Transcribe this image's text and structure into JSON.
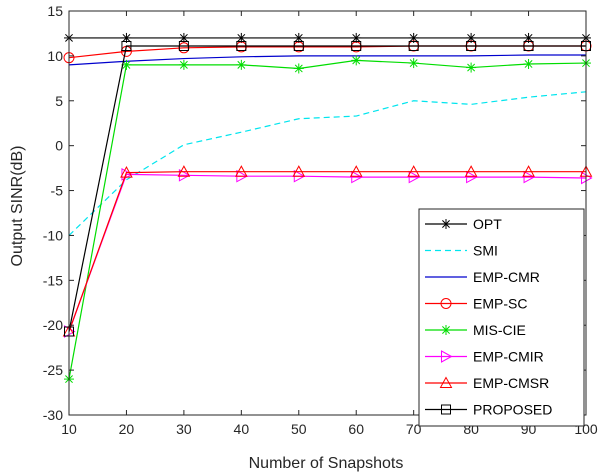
{
  "chart_data": {
    "type": "line",
    "title": "",
    "xlabel": "Number of Snapshots",
    "ylabel": "Output SINR(dB)",
    "xlim": [
      10,
      100
    ],
    "ylim": [
      -30,
      15
    ],
    "xticks": [
      10,
      20,
      30,
      40,
      50,
      60,
      70,
      80,
      90,
      100
    ],
    "yticks": [
      15,
      10,
      5,
      0,
      -5,
      -10,
      -15,
      -20,
      -25,
      -30
    ],
    "grid": false,
    "legend_position": "bottom-right",
    "x": [
      10,
      20,
      30,
      40,
      50,
      60,
      70,
      80,
      90,
      100
    ],
    "series": [
      {
        "name": "OPT",
        "color": "#000000",
        "marker": "asterisk",
        "dash": "solid",
        "values": [
          12.0,
          12.0,
          12.0,
          12.0,
          12.0,
          12.0,
          12.0,
          12.0,
          12.0,
          12.0
        ]
      },
      {
        "name": "SMI",
        "color": "#00e5ee",
        "marker": "none",
        "dash": "dashed",
        "values": [
          -10.0,
          -3.8,
          0.1,
          1.5,
          3.0,
          3.3,
          5.0,
          4.6,
          5.4,
          6.0
        ]
      },
      {
        "name": "EMP-CMR",
        "color": "#0000cd",
        "marker": "none",
        "dash": "solid",
        "values": [
          9.0,
          9.4,
          9.7,
          9.9,
          10.0,
          10.0,
          10.0,
          10.0,
          10.1,
          10.1
        ]
      },
      {
        "name": "EMP-SC",
        "color": "#ff0000",
        "marker": "circle",
        "dash": "solid",
        "values": [
          9.8,
          10.5,
          10.9,
          11.0,
          11.0,
          11.0,
          11.1,
          11.1,
          11.1,
          11.1
        ]
      },
      {
        "name": "MIS-CIE",
        "color": "#00dd00",
        "marker": "asterisk",
        "dash": "solid",
        "values": [
          -26.0,
          9.0,
          9.0,
          9.0,
          8.6,
          9.5,
          9.2,
          8.7,
          9.1,
          9.2
        ]
      },
      {
        "name": "EMP-CMIR",
        "color": "#ff00ff",
        "marker": "triangle-right",
        "dash": "solid",
        "values": [
          -20.7,
          -3.2,
          -3.3,
          -3.4,
          -3.4,
          -3.5,
          -3.5,
          -3.5,
          -3.5,
          -3.6
        ]
      },
      {
        "name": "EMP-CMSR",
        "color": "#ff0000",
        "marker": "triangle-up",
        "dash": "solid",
        "values": [
          -20.7,
          -3.0,
          -2.9,
          -2.9,
          -2.9,
          -2.9,
          -2.9,
          -2.9,
          -2.9,
          -2.9
        ]
      },
      {
        "name": "PROPOSED",
        "color": "#000000",
        "marker": "square",
        "dash": "solid",
        "values": [
          -20.7,
          11.1,
          11.1,
          11.1,
          11.1,
          11.1,
          11.1,
          11.1,
          11.1,
          11.1
        ]
      }
    ]
  }
}
